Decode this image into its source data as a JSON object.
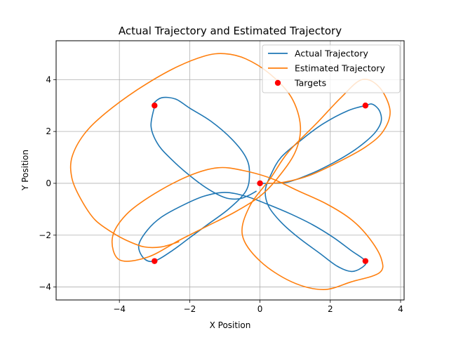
{
  "chart_data": {
    "type": "line",
    "title": "Actual Trajectory and Estimated Trajectory",
    "xlabel": "X Position",
    "ylabel": "Y Position",
    "xlim": [
      -5.8,
      4.1
    ],
    "ylim": [
      -4.5,
      5.5
    ],
    "x_ticks": [
      -4,
      -2,
      0,
      2,
      4
    ],
    "y_ticks": [
      -4,
      -2,
      0,
      2,
      4
    ],
    "grid": true,
    "legend_position": "top-right",
    "series": [
      {
        "name": "Actual Trajectory",
        "kind": "line",
        "color": "#1f77b4",
        "points": [
          [
            0.0,
            0.0
          ],
          [
            0.3,
            0.0
          ],
          [
            0.8,
            0.05
          ],
          [
            1.5,
            0.4
          ],
          [
            2.1,
            0.8
          ],
          [
            2.6,
            1.2
          ],
          [
            3.0,
            1.6
          ],
          [
            3.3,
            2.0
          ],
          [
            3.45,
            2.4
          ],
          [
            3.4,
            2.8
          ],
          [
            3.2,
            3.05
          ],
          [
            3.0,
            3.0
          ],
          [
            2.5,
            2.8
          ],
          [
            1.8,
            2.3
          ],
          [
            1.2,
            1.7
          ],
          [
            0.6,
            1.0
          ],
          [
            0.3,
            0.3
          ],
          [
            0.15,
            -0.3
          ],
          [
            0.25,
            -0.9
          ],
          [
            0.6,
            -1.5
          ],
          [
            1.1,
            -2.1
          ],
          [
            1.7,
            -2.7
          ],
          [
            2.2,
            -3.2
          ],
          [
            2.6,
            -3.4
          ],
          [
            2.9,
            -3.25
          ],
          [
            3.0,
            -3.0
          ],
          [
            2.6,
            -2.6
          ],
          [
            2.1,
            -2.1
          ],
          [
            1.5,
            -1.6
          ],
          [
            0.9,
            -1.2
          ],
          [
            0.2,
            -0.8
          ],
          [
            -0.4,
            -0.5
          ],
          [
            -1.0,
            -0.35
          ],
          [
            -1.6,
            -0.5
          ],
          [
            -2.2,
            -0.85
          ],
          [
            -2.8,
            -1.3
          ],
          [
            -3.2,
            -1.8
          ],
          [
            -3.45,
            -2.4
          ],
          [
            -3.3,
            -2.9
          ],
          [
            -3.0,
            -3.0
          ],
          [
            -2.5,
            -2.6
          ],
          [
            -2.0,
            -2.1
          ],
          [
            -1.5,
            -1.6
          ],
          [
            -0.9,
            -1.0
          ],
          [
            -0.4,
            -0.3
          ],
          [
            -0.3,
            0.4
          ],
          [
            -0.4,
            1.0
          ],
          [
            -0.8,
            1.7
          ],
          [
            -1.4,
            2.4
          ],
          [
            -2.0,
            2.9
          ],
          [
            -2.4,
            3.25
          ],
          [
            -2.8,
            3.3
          ],
          [
            -3.05,
            3.05
          ],
          [
            -3.0,
            3.0
          ],
          [
            -3.1,
            2.2
          ],
          [
            -2.9,
            1.5
          ],
          [
            -2.5,
            0.9
          ],
          [
            -2.0,
            0.3
          ],
          [
            -1.5,
            -0.2
          ],
          [
            -1.0,
            -0.55
          ],
          [
            -0.6,
            -0.6
          ],
          [
            -0.3,
            -0.45
          ],
          [
            -0.1,
            -0.3
          ]
        ]
      },
      {
        "name": "Estimated Trajectory",
        "kind": "line",
        "color": "#ff7f0e",
        "points": [
          [
            -2.3,
            -2.25
          ],
          [
            -2.8,
            -2.45
          ],
          [
            -3.3,
            -2.45
          ],
          [
            -3.8,
            -2.2
          ],
          [
            -4.2,
            -1.9
          ],
          [
            -4.7,
            -1.4
          ],
          [
            -5.1,
            -0.6
          ],
          [
            -5.35,
            0.2
          ],
          [
            -5.35,
            1.0
          ],
          [
            -5.0,
            1.9
          ],
          [
            -4.4,
            2.7
          ],
          [
            -3.5,
            3.6
          ],
          [
            -2.5,
            4.4
          ],
          [
            -1.6,
            4.9
          ],
          [
            -1.0,
            5.0
          ],
          [
            -0.4,
            4.8
          ],
          [
            0.3,
            4.2
          ],
          [
            0.9,
            3.3
          ],
          [
            1.15,
            2.2
          ],
          [
            1.0,
            1.2
          ],
          [
            0.5,
            0.2
          ],
          [
            0.0,
            -0.5
          ],
          [
            -0.7,
            -1.1
          ],
          [
            -1.5,
            -1.65
          ],
          [
            -2.3,
            -2.2
          ],
          [
            -3.2,
            -2.85
          ],
          [
            -4.0,
            -2.95
          ],
          [
            -4.2,
            -2.1
          ],
          [
            -3.8,
            -1.2
          ],
          [
            -3.0,
            -0.4
          ],
          [
            -2.0,
            0.3
          ],
          [
            -1.2,
            0.6
          ],
          [
            -0.5,
            0.5
          ],
          [
            0.3,
            0.2
          ],
          [
            1.1,
            -0.3
          ],
          [
            1.9,
            -0.8
          ],
          [
            2.6,
            -1.4
          ],
          [
            3.1,
            -2.1
          ],
          [
            3.45,
            -2.9
          ],
          [
            3.4,
            -3.45
          ],
          [
            2.6,
            -3.8
          ],
          [
            1.8,
            -4.1
          ],
          [
            0.9,
            -3.8
          ],
          [
            0.0,
            -3.0
          ],
          [
            -0.5,
            -2.0
          ],
          [
            -0.3,
            -0.9
          ],
          [
            0.3,
            0.2
          ],
          [
            0.8,
            1.2
          ],
          [
            1.6,
            2.3
          ],
          [
            2.3,
            3.3
          ],
          [
            2.9,
            4.0
          ],
          [
            3.4,
            3.7
          ],
          [
            3.7,
            2.8
          ],
          [
            3.5,
            2.0
          ],
          [
            3.0,
            1.4
          ],
          [
            2.2,
            0.8
          ],
          [
            1.4,
            0.3
          ],
          [
            0.7,
            0.05
          ],
          [
            0.2,
            0.0
          ]
        ]
      },
      {
        "name": "Targets",
        "kind": "scatter",
        "color": "#ff0000",
        "points": [
          [
            -3,
            3
          ],
          [
            3,
            3
          ],
          [
            0,
            0
          ],
          [
            -3,
            -3
          ],
          [
            3,
            -3
          ]
        ]
      }
    ]
  }
}
